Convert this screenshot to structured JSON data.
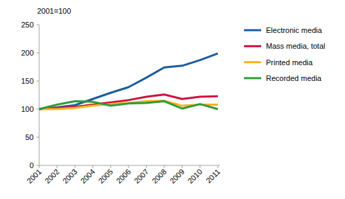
{
  "chart_data": {
    "type": "line",
    "y_label": "2001=100",
    "categories": [
      "2001",
      "2002",
      "2003",
      "2004",
      "2005",
      "2006",
      "2007",
      "2008",
      "2009",
      "2010",
      "2011"
    ],
    "series": [
      {
        "name": "Electronic media",
        "color": "#1a5c9e",
        "values": [
          100,
          103,
          107,
          118,
          129,
          139,
          156,
          174,
          177,
          187,
          199
        ]
      },
      {
        "name": "Mass media, total",
        "color": "#cf1040",
        "values": [
          100,
          102,
          104,
          108,
          112,
          116,
          122,
          126,
          118,
          122,
          123
        ]
      },
      {
        "name": "Printed media",
        "color": "#f7b41e",
        "values": [
          100,
          100,
          102,
          106,
          109,
          111,
          114,
          115,
          106,
          108,
          108
        ]
      },
      {
        "name": "Recorded media",
        "color": "#2e9b3b",
        "values": [
          100,
          108,
          114,
          113,
          106,
          110,
          111,
          114,
          101,
          109,
          100
        ]
      }
    ],
    "ylim": [
      0,
      250
    ],
    "yticks": [
      0,
      50,
      100,
      150,
      200,
      250
    ],
    "grid": false,
    "legend": "right"
  }
}
